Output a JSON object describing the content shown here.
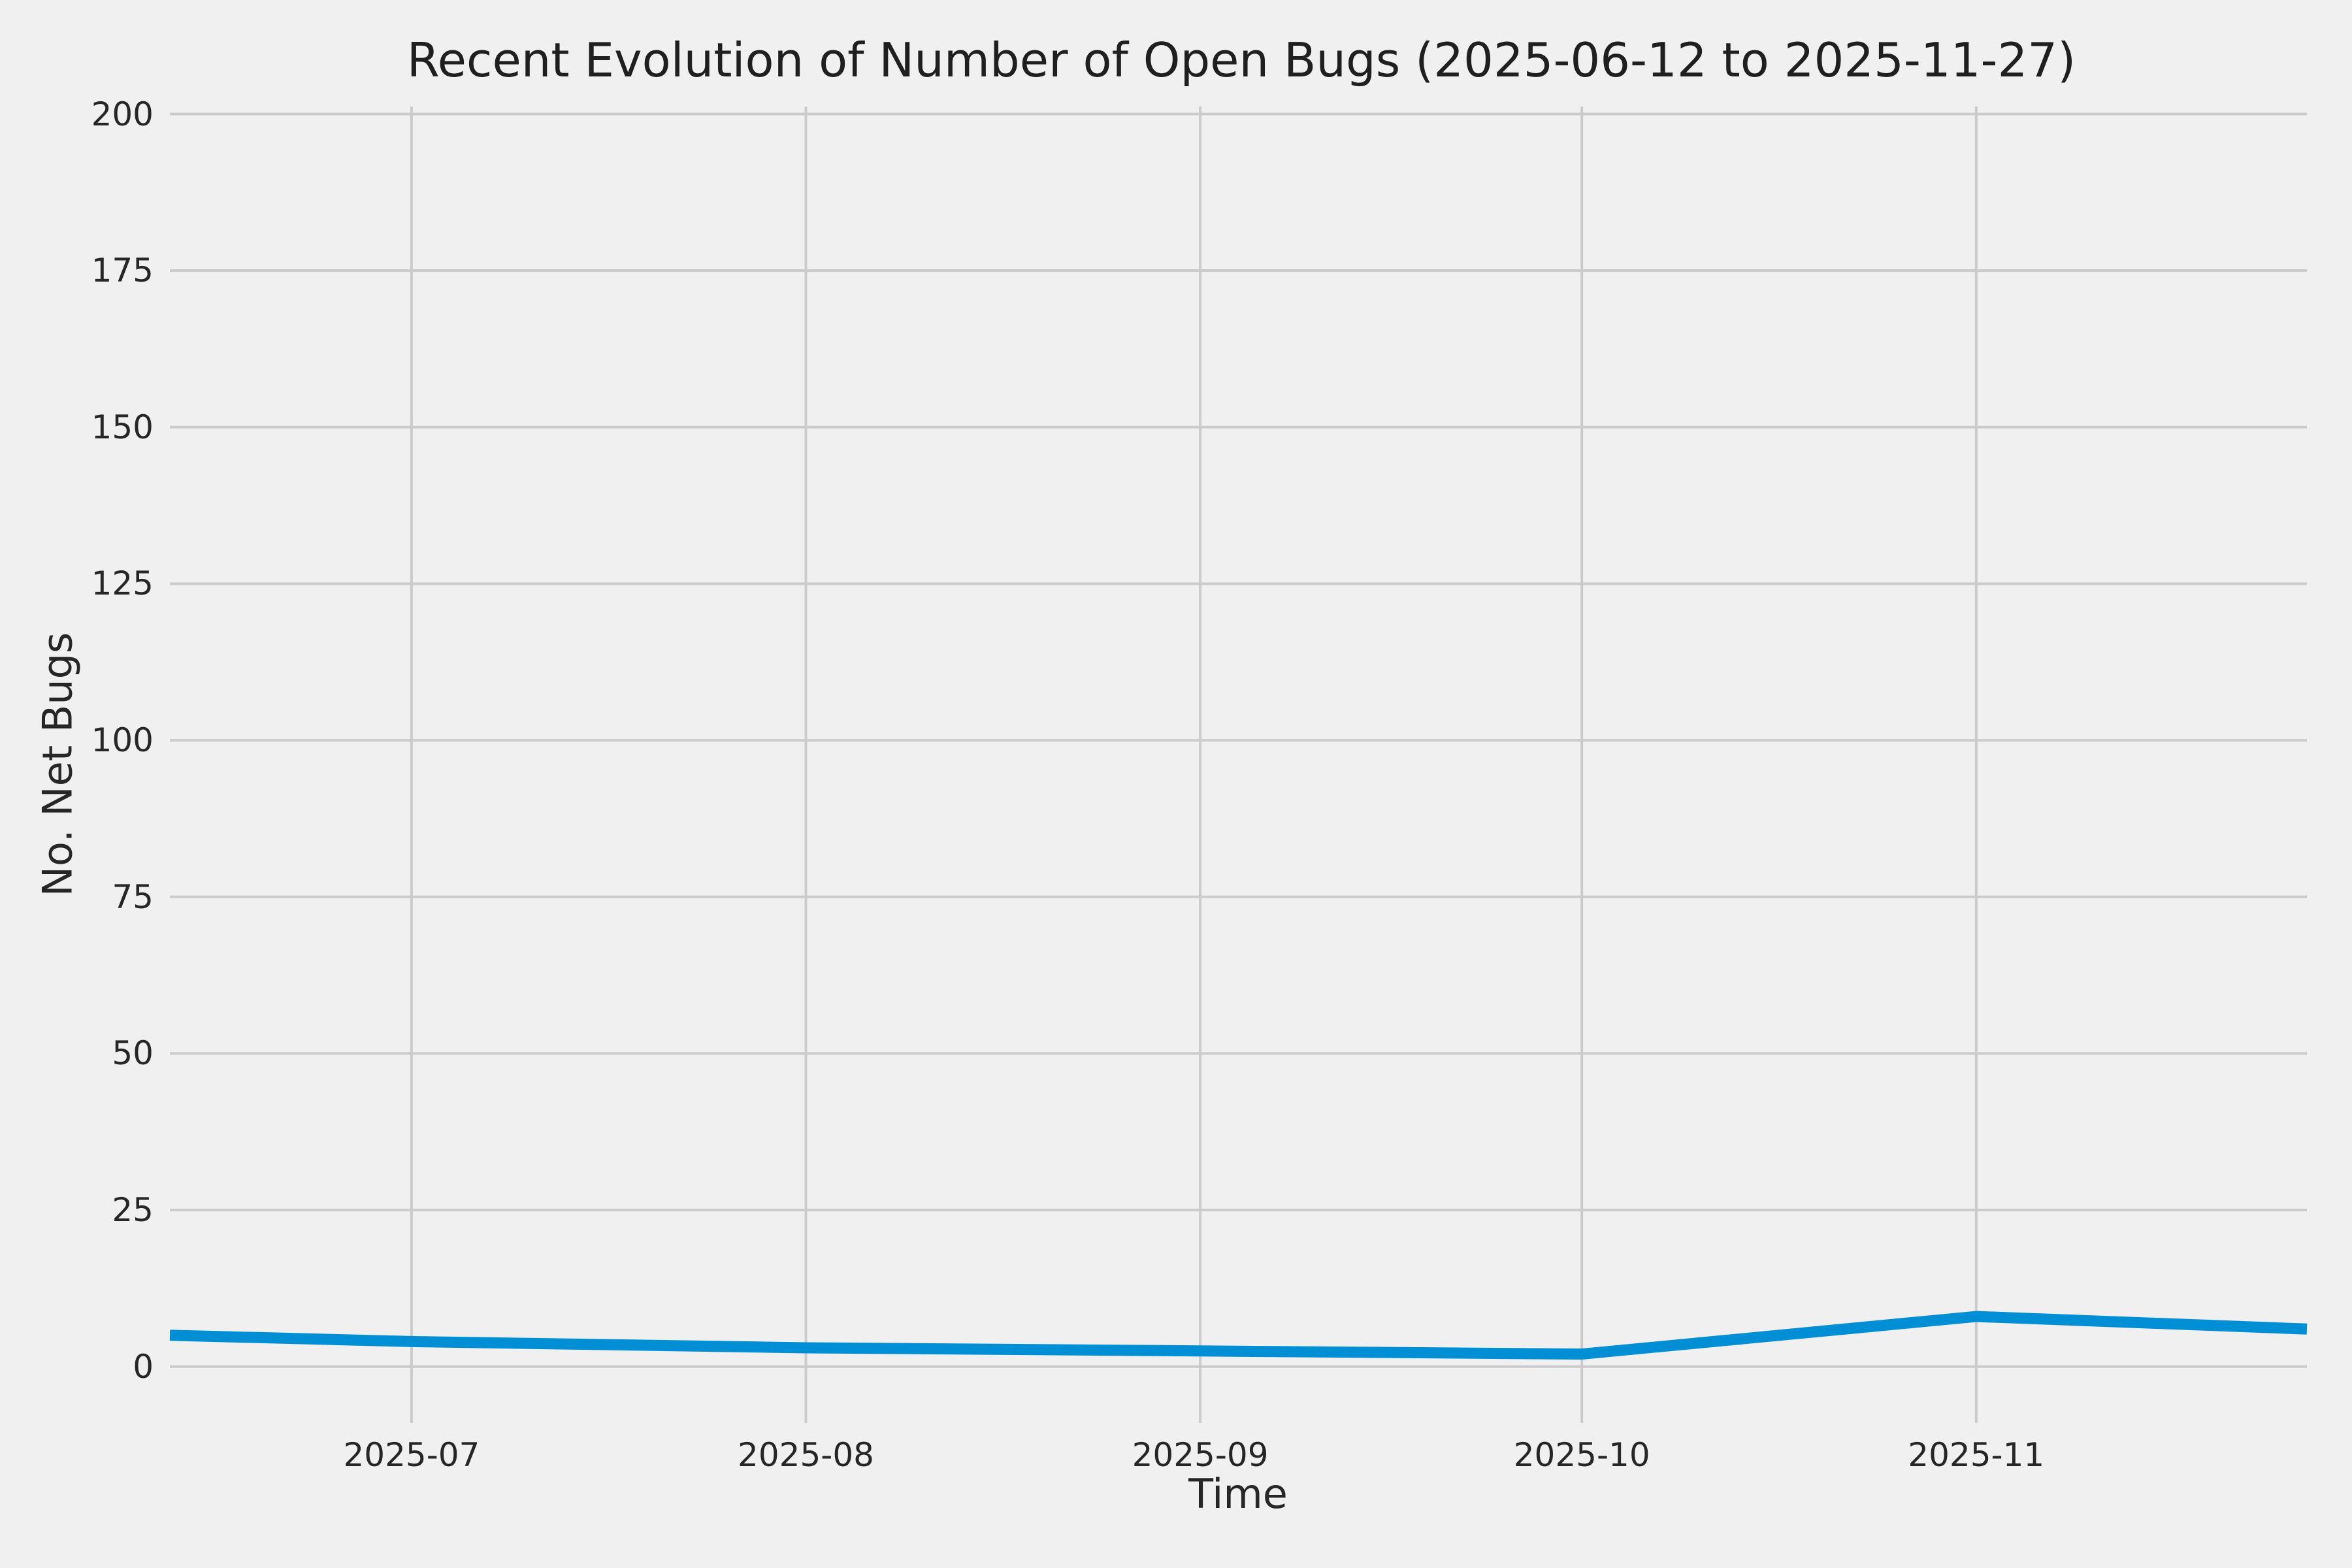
{
  "chart_data": {
    "type": "line",
    "title": "Recent Evolution of Number of Open Bugs (2025-06-12 to 2025-11-27)",
    "xlabel": "Time",
    "ylabel": "No. Net Bugs",
    "x_dates": [
      "2025-06-12",
      "2025-07-01",
      "2025-08-01",
      "2025-09-01",
      "2025-10-01",
      "2025-11-01",
      "2025-11-27"
    ],
    "x_days": [
      0,
      19,
      50,
      81,
      111,
      142,
      168
    ],
    "values": [
      5,
      4,
      3,
      2.5,
      2,
      8,
      6
    ],
    "x_tick_labels": [
      "2025-07",
      "2025-08",
      "2025-09",
      "2025-10",
      "2025-11"
    ],
    "x_tick_days": [
      19,
      50,
      81,
      111,
      142
    ],
    "y_ticks": [
      0,
      25,
      50,
      75,
      100,
      125,
      150,
      175,
      200
    ],
    "xlim_days": [
      0,
      168
    ],
    "ylim": [
      -9,
      201.2
    ],
    "grid": true,
    "legend": "none",
    "line_color": "#008fd5",
    "background_color": "#f0f0f0",
    "grid_color": "#cbcbcb",
    "text_color": "#262626"
  }
}
